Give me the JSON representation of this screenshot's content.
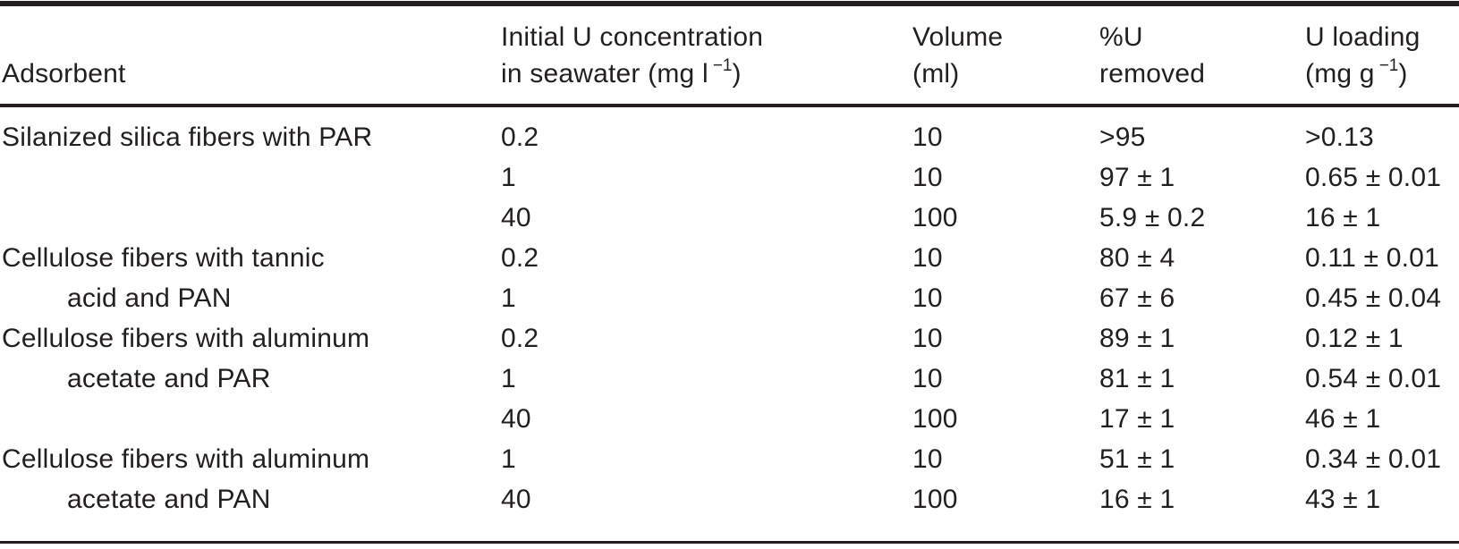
{
  "colors": {
    "text": "#231f20",
    "rule": "#231f20",
    "background": "#ffffff"
  },
  "table": {
    "header": {
      "adsorbent": "Adsorbent",
      "initial_conc_line1": "Initial U concentration",
      "initial_conc_line2_pre": "in seawater (mg l",
      "initial_conc_sup": "−1",
      "initial_conc_line2_post": ")",
      "volume_line1": "Volume",
      "volume_line2": "(ml)",
      "removed_line1": "%U",
      "removed_line2": "removed",
      "loading_line1": "U loading",
      "loading_line2_pre": "(mg g",
      "loading_sup": "−1",
      "loading_line2_post": ")"
    },
    "rows": [
      {
        "adsorbent": "Silanized silica fibers with PAR",
        "initial_conc": "0.2",
        "volume": "10",
        "u_removed": ">95",
        "u_loading": ">0.13"
      },
      {
        "adsorbent": "",
        "initial_conc": "1",
        "volume": "10",
        "u_removed": "97 ± 1",
        "u_loading": "0.65 ± 0.01"
      },
      {
        "adsorbent": "",
        "initial_conc": "40",
        "volume": "100",
        "u_removed": "5.9 ± 0.2",
        "u_loading": "16 ± 1"
      },
      {
        "adsorbent": "Cellulose fibers with tannic",
        "initial_conc": "0.2",
        "volume": "10",
        "u_removed": "80 ± 4",
        "u_loading": "0.11 ± 0.01"
      },
      {
        "adsorbent": "acid and PAN",
        "initial_conc": "1",
        "volume": "10",
        "u_removed": "67 ± 6",
        "u_loading": "0.45 ± 0.04"
      },
      {
        "adsorbent": "Cellulose fibers with aluminum",
        "initial_conc": "0.2",
        "volume": "10",
        "u_removed": "89 ± 1",
        "u_loading": "0.12 ± 1"
      },
      {
        "adsorbent": "acetate and PAR",
        "initial_conc": "1",
        "volume": "10",
        "u_removed": "81 ± 1",
        "u_loading": "0.54 ± 0.01"
      },
      {
        "adsorbent": "",
        "initial_conc": "40",
        "volume": "100",
        "u_removed": "17 ± 1",
        "u_loading": "46 ± 1"
      },
      {
        "adsorbent": "Cellulose fibers with aluminum",
        "initial_conc": "1",
        "volume": "10",
        "u_removed": "51 ± 1",
        "u_loading": "0.34 ± 0.01"
      },
      {
        "adsorbent": "acetate and PAN",
        "initial_conc": "40",
        "volume": "100",
        "u_removed": "16 ± 1",
        "u_loading": "43 ± 1"
      }
    ]
  }
}
